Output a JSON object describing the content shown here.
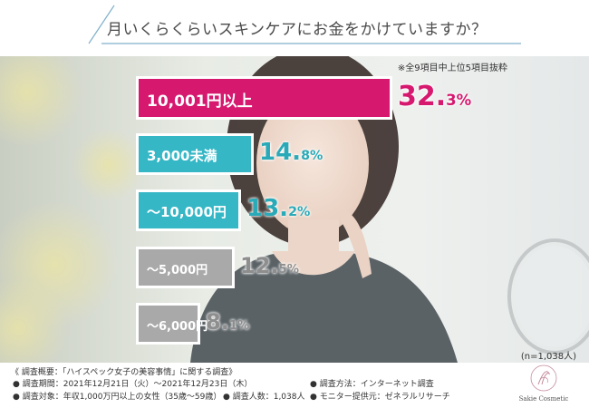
{
  "header": {
    "title": "月いくらくらいスキンケアにお金をかけていますか？"
  },
  "note": "※全9項目中上位5項目抜粋",
  "sample_size": "(n=1,038人)",
  "colors": {
    "pink": "#d6186f",
    "teal": "#35b7c6",
    "gray": "#a9a9a9",
    "teal_text": "#2aaab8",
    "gray_text": "#8e8e8e"
  },
  "chart_data": {
    "type": "bar",
    "orientation": "horizontal",
    "title": "月いくらくらいスキンケアにお金をかけていますか？",
    "categories": [
      "10,001円以上",
      "3,000未満",
      "～10,000円",
      "～5,000円",
      "～6,000円"
    ],
    "values": [
      32.3,
      14.8,
      13.2,
      12.5,
      8.1
    ],
    "value_labels": [
      {
        "main": "32.",
        "unit": "3%"
      },
      {
        "main": "14.",
        "unit": "8%"
      },
      {
        "main": "13.",
        "unit": "2%"
      },
      {
        "main": "12.",
        "unit": "5%"
      },
      {
        "main": "8.",
        "unit": "1%"
      }
    ],
    "bar_colors": [
      "#d6186f",
      "#35b7c6",
      "#35b7c6",
      "#a9a9a9",
      "#a9a9a9"
    ],
    "value_colors": [
      "#d6186f",
      "#2aaab8",
      "#2aaab8",
      "#8e8e8e",
      "#8e8e8e"
    ]
  },
  "footer": {
    "survey_overview": "《 調査概要：「ハイスペック女子の美容事情」に関する調査》",
    "period": "● 調査期間：2021年12月21日（火）～2021年12月23日（木）",
    "method": "● 調査方法：インターネット調査",
    "target": "● 調査対象：年収1,000万円以上の女性（35歳～59歳）",
    "count": "● 調査人数：1,038人",
    "provider": "● モニター提供元：ゼネラルリサーチ"
  },
  "logo": {
    "text": "Sakie Cosmetic"
  }
}
